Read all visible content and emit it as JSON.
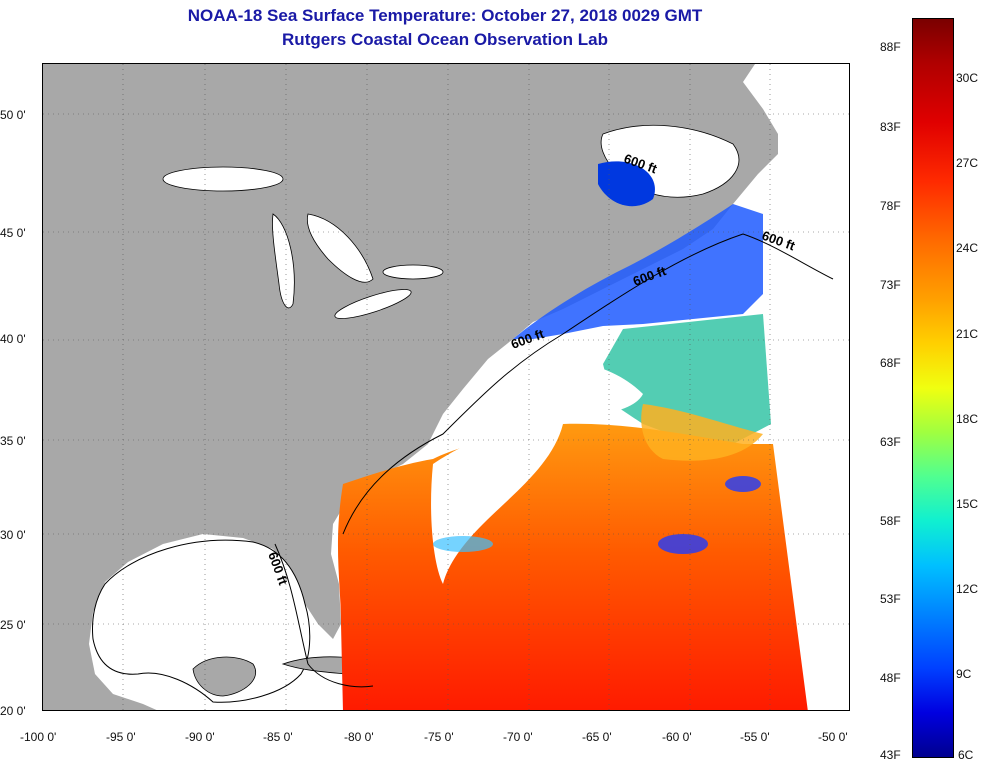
{
  "title": {
    "line1": "NOAA-18 Sea Surface Temperature:  October 27, 2018 0029 GMT",
    "line2": "Rutgers Coastal Ocean Observation Lab"
  },
  "axes": {
    "lon_labels": [
      "-100 0'",
      "-95 0'",
      "-90 0'",
      "-85 0'",
      "-80 0'",
      "-75 0'",
      "-70 0'",
      "-65 0'",
      "-60 0'",
      "-55 0'",
      "-50 0'"
    ],
    "lat_labels": [
      "50 0'",
      "45 0'",
      "40 0'",
      "35 0'",
      "30 0'",
      "25 0'",
      "20 0'"
    ]
  },
  "contour_labels": [
    "600 ft",
    "600 ft",
    "600 ft",
    "600 ft",
    "600 ft"
  ],
  "colorbar": {
    "fahrenheit": [
      "88F",
      "83F",
      "78F",
      "73F",
      "68F",
      "63F",
      "58F",
      "53F",
      "48F",
      "43F"
    ],
    "celsius": [
      "30C",
      "27C",
      "24C",
      "21C",
      "18C",
      "15C",
      "12C",
      "9C",
      "6C"
    ]
  },
  "colors": {
    "land": "#a8a8a8",
    "water_nodata": "#ffffff",
    "title": "#1a1aa6"
  }
}
